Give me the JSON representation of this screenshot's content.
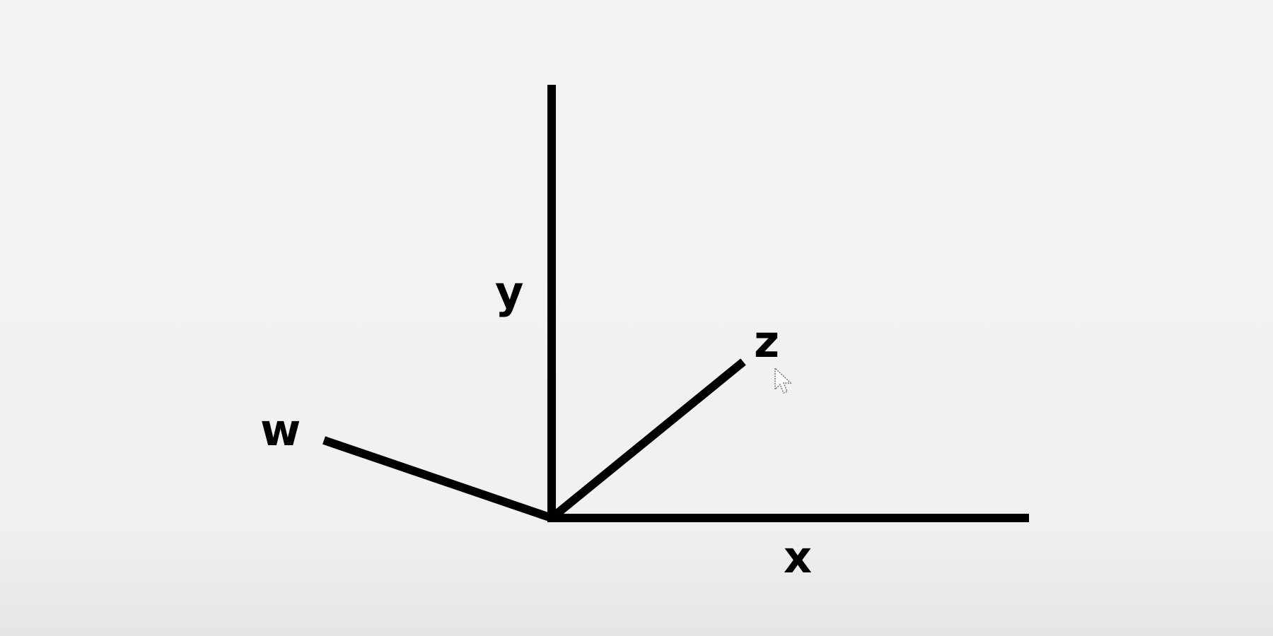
{
  "diagram": {
    "colors": {
      "stroke": "#000000",
      "background": "#f2f2f3"
    },
    "axes": [
      {
        "id": "y",
        "label": "y"
      },
      {
        "id": "z",
        "label": "z"
      },
      {
        "id": "w",
        "label": "w"
      },
      {
        "id": "x",
        "label": "x"
      }
    ],
    "cursor_icon": "mouse-pointer-icon"
  }
}
